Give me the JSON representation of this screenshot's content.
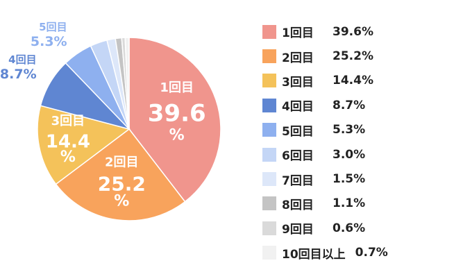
{
  "colors": {
    "label_white": "#ffffff",
    "legend_text": "#222222",
    "slice_border": "#ffffff"
  },
  "chart_data": {
    "type": "pie",
    "title": "",
    "start_angle_deg": 0,
    "direction": "clockwise",
    "slices": [
      {
        "label": "1回目",
        "value": 39.6,
        "display": "39.6%",
        "color": "#f0958d"
      },
      {
        "label": "2回目",
        "value": 25.2,
        "display": "25.2%",
        "color": "#f8a35c"
      },
      {
        "label": "3回目",
        "value": 14.4,
        "display": "14.4%",
        "color": "#f4c25a"
      },
      {
        "label": "4回目",
        "value": 8.7,
        "display": "8.7%",
        "color": "#5f86d2"
      },
      {
        "label": "5回目",
        "value": 5.3,
        "display": "5.3%",
        "color": "#8eb0ef"
      },
      {
        "label": "6回目",
        "value": 3.0,
        "display": "3.0%",
        "color": "#c4d6f6"
      },
      {
        "label": "7回目",
        "value": 1.5,
        "display": "1.5%",
        "color": "#dde7f9"
      },
      {
        "label": "8回目",
        "value": 1.1,
        "display": "1.1%",
        "color": "#c4c4c4"
      },
      {
        "label": "9回目",
        "value": 0.6,
        "display": "0.6%",
        "color": "#dadada"
      },
      {
        "label": "10回目以上",
        "value": 0.7,
        "display": "0.7%",
        "color": "#f1f1f1"
      }
    ],
    "inner_labels": [
      {
        "slice": 0,
        "name": "1回目",
        "value": "39.6",
        "unit": "%"
      },
      {
        "slice": 1,
        "name": "2回目",
        "value": "25.2",
        "unit": "%"
      },
      {
        "slice": 2,
        "name": "3回目",
        "value": "14.4",
        "unit": "%"
      }
    ],
    "outer_labels": [
      {
        "slice": 3,
        "name": "4回目",
        "value": "8.7%"
      },
      {
        "slice": 4,
        "name": "5回目",
        "value": "5.3%"
      }
    ],
    "legend_position": "right"
  }
}
